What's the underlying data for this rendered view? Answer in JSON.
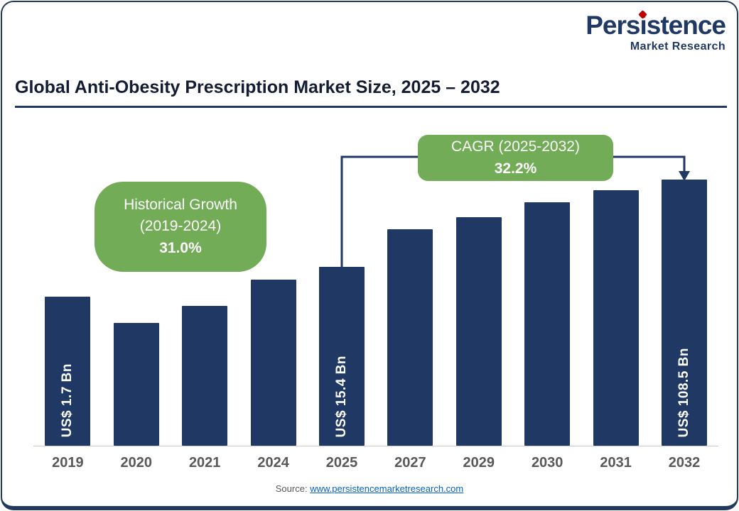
{
  "brand": {
    "name_prefix": "Pers",
    "name_i": "i",
    "name_suffix": "stence",
    "tagline": "Market Research",
    "name_color": "#1F3864",
    "accent_color": "#C00000"
  },
  "header": {
    "title": "Global Anti-Obesity Prescription Market Size, 2025 – 2032"
  },
  "chart_data": {
    "type": "bar",
    "title": "Global Anti-Obesity Prescription Market Size, 2025 – 2032",
    "categories": [
      "2019",
      "2020",
      "2021",
      "2024",
      "2025",
      "2027",
      "2029",
      "2030",
      "2031",
      "2032"
    ],
    "bar_heights_pct": [
      56,
      46,
      52.5,
      62.4,
      67.2,
      81.3,
      85.9,
      91.5,
      96,
      100
    ],
    "bar_labels": [
      "US$ 1.7 Bn",
      "",
      "",
      "",
      "US$ 15.4 Bn",
      "",
      "",
      "",
      "",
      "US$ 108.5 Bn"
    ],
    "values_usd_bn": {
      "2019": 1.7,
      "2025": 15.4,
      "2032": 108.5
    },
    "bar_color": "#1F3864",
    "xlabel": "",
    "ylabel": "",
    "grid": "off",
    "annotations": [
      {
        "name": "historical-growth",
        "line1": "Historical Growth",
        "line2": "(2019-2024)",
        "value": "31.0%",
        "color": "#72AC57"
      },
      {
        "name": "cagr",
        "line1": "CAGR (2025-2032)",
        "line2": "",
        "value": "32.2%",
        "color": "#72AC57"
      }
    ]
  },
  "footer": {
    "source_label": "Source:",
    "link_text": "www.persistencemarketresearch.com"
  }
}
